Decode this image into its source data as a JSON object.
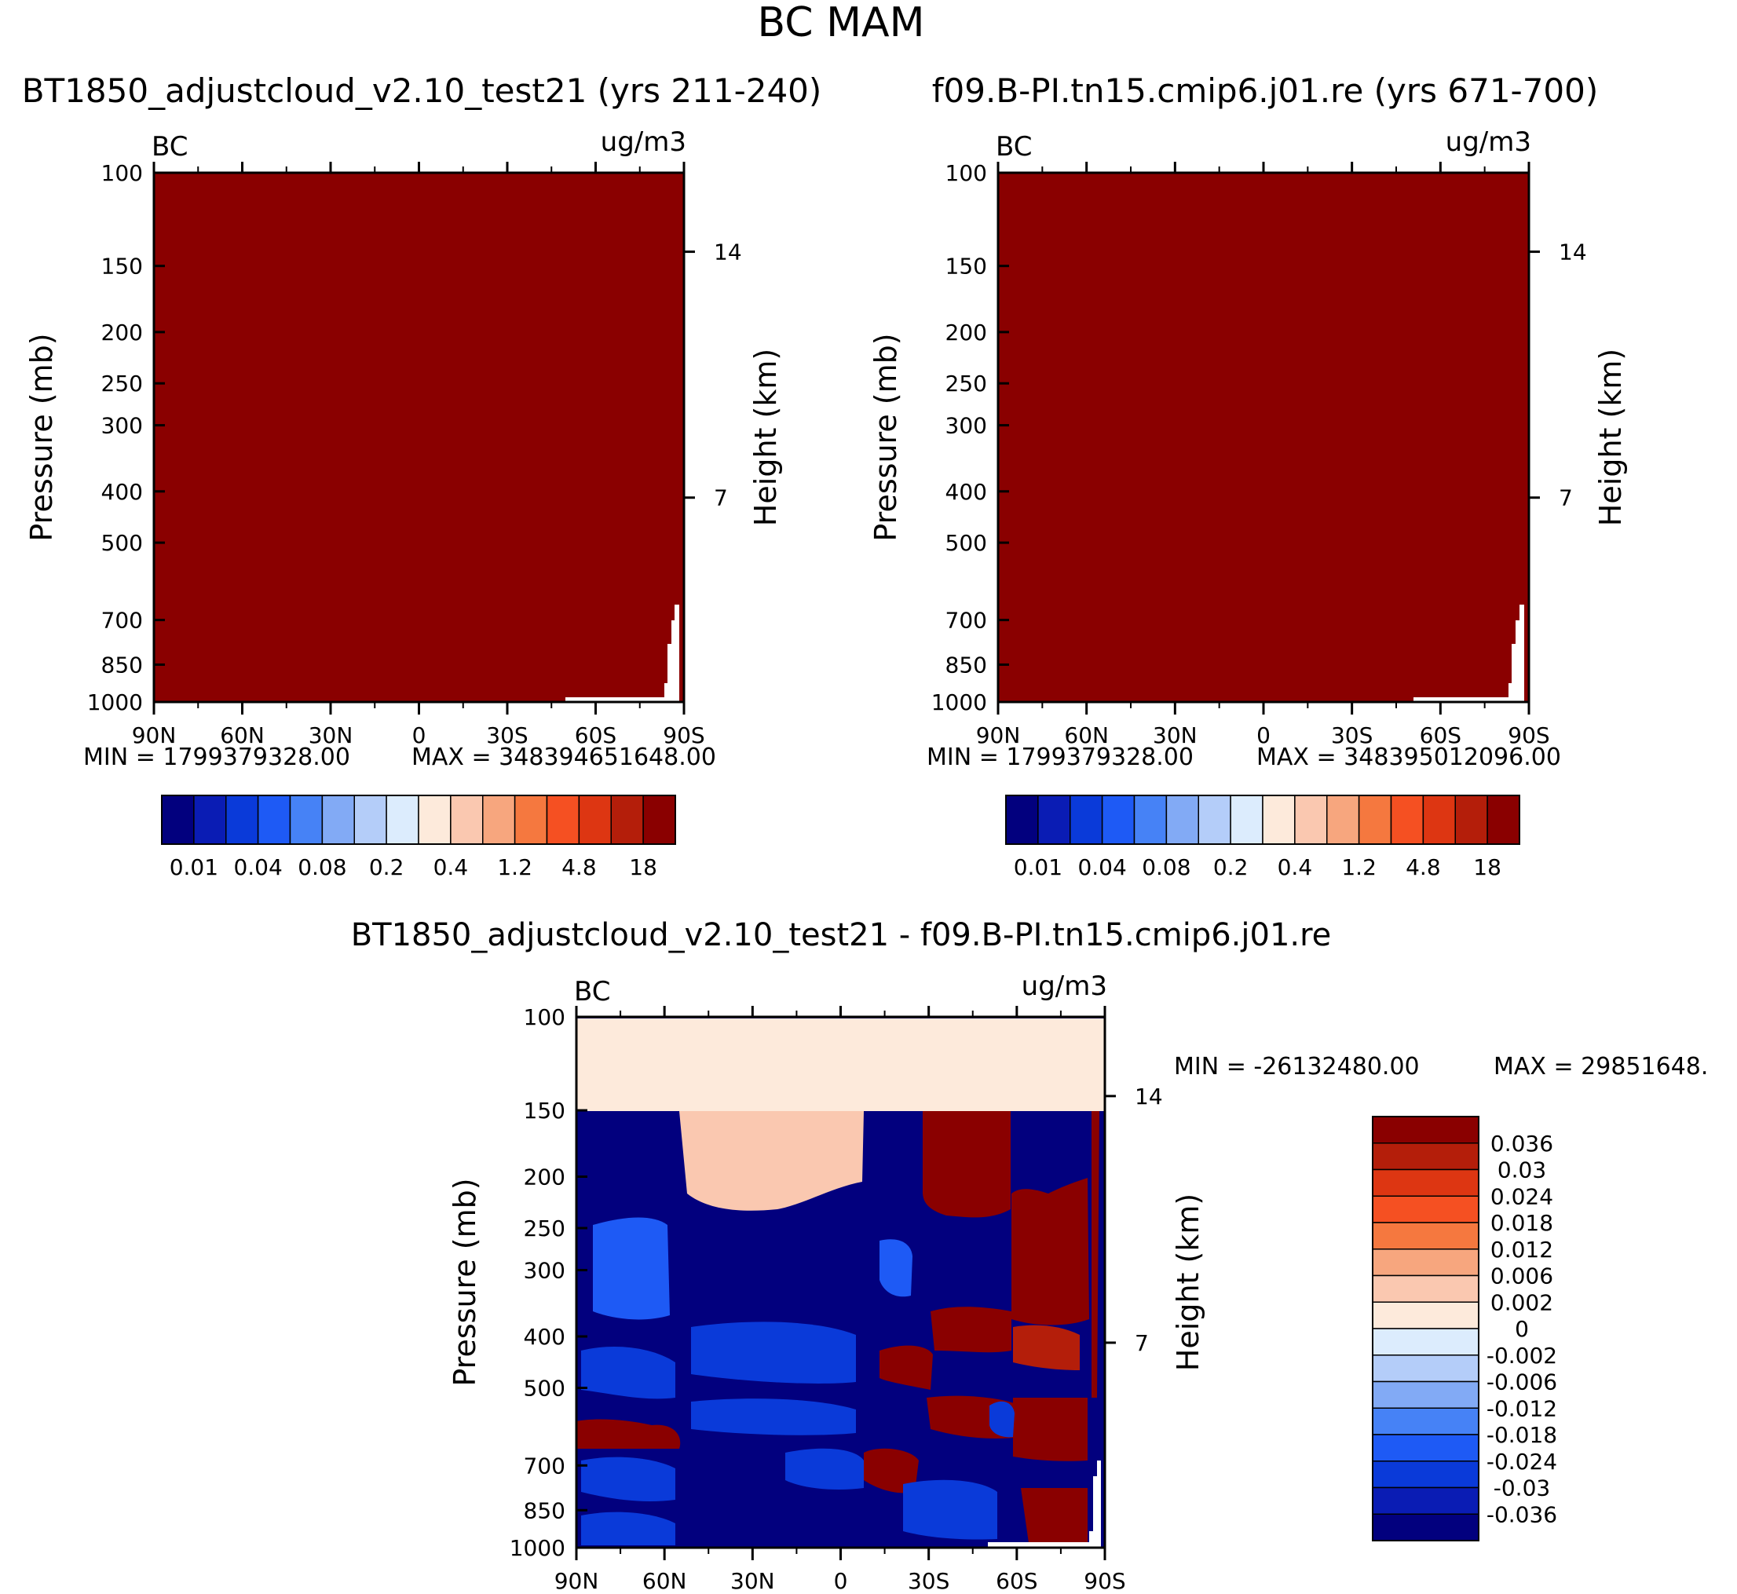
{
  "chart_data": {
    "type": "heatmap",
    "title": "BC MAM",
    "colors": {
      "top_scale": [
        "#02007e",
        "#0a1cb4",
        "#0a3ad9",
        "#1e5af5",
        "#4682f6",
        "#82aaf5",
        "#b4cdf9",
        "#dcecfd",
        "#fdeadb",
        "#fac8b0",
        "#f7a67e",
        "#f5783f",
        "#f55022",
        "#dd3612",
        "#b41e0a",
        "#8a0000"
      ],
      "diff_scale": [
        "#02007e",
        "#0a1cb4",
        "#0a3ad9",
        "#1e5af5",
        "#4682f6",
        "#82aaf5",
        "#b4cdf9",
        "#dcecfd",
        "#fdeadb",
        "#fac8b0",
        "#f7a67e",
        "#f5783f",
        "#f55022",
        "#dd3612",
        "#b41e0a",
        "#8a0000"
      ]
    },
    "panels": [
      {
        "title": "BT1850_adjustcloud_v2.10_test21 (yrs 211-240)",
        "left_label": "BC",
        "right_label": "ug/m3",
        "ylabel": "Pressure (mb)",
        "ylabel_right": "Height (km)",
        "y_ticks": [
          "100",
          "150",
          "200",
          "250",
          "300",
          "400",
          "500",
          "700",
          "850",
          "1000"
        ],
        "y_right_ticks": [
          "14",
          "7"
        ],
        "x_ticks": [
          "90N",
          "60N",
          "30N",
          "0",
          "30S",
          "60S",
          "90S"
        ],
        "min_label": "MIN = 1799379328.00",
        "max_label": "MAX = 348394651648.00",
        "colorbar_labels": [
          "0.01",
          "0.04",
          "0.08",
          "0.2",
          "0.4",
          "1.2",
          "4.8",
          "18"
        ],
        "fill_value_index": 15
      },
      {
        "title": "f09.B-PI.tn15.cmip6.j01.re (yrs 671-700)",
        "left_label": "BC",
        "right_label": "ug/m3",
        "ylabel": "Pressure (mb)",
        "ylabel_right": "Height (km)",
        "y_ticks": [
          "100",
          "150",
          "200",
          "250",
          "300",
          "400",
          "500",
          "700",
          "850",
          "1000"
        ],
        "y_right_ticks": [
          "14",
          "7"
        ],
        "x_ticks": [
          "90N",
          "60N",
          "30N",
          "0",
          "30S",
          "60S",
          "90S"
        ],
        "min_label": "MIN = 1799379328.00",
        "max_label": "MAX = 348395012096.00",
        "colorbar_labels": [
          "0.01",
          "0.04",
          "0.08",
          "0.2",
          "0.4",
          "1.2",
          "4.8",
          "18"
        ],
        "fill_value_index": 15
      },
      {
        "title": "BT1850_adjustcloud_v2.10_test21 - f09.B-PI.tn15.cmip6.j01.re",
        "left_label": "BC",
        "right_label": "ug/m3",
        "ylabel": "Pressure (mb)",
        "ylabel_right": "Height (km)",
        "y_ticks": [
          "100",
          "150",
          "200",
          "250",
          "300",
          "400",
          "500",
          "700",
          "850",
          "1000"
        ],
        "y_right_ticks": [
          "14",
          "7"
        ],
        "x_ticks": [
          "90N",
          "60N",
          "30N",
          "0",
          "30S",
          "60S",
          "90S"
        ],
        "min_label": "MIN = -26132480.00",
        "max_label": "MAX = 29851648.",
        "colorbar_labels": [
          "0.036",
          "0.03",
          "0.024",
          "0.018",
          "0.012",
          "0.006",
          "0.002",
          "0",
          "-0.002",
          "-0.006",
          "-0.012",
          "-0.018",
          "-0.024",
          "-0.03",
          "-0.036"
        ]
      }
    ]
  }
}
